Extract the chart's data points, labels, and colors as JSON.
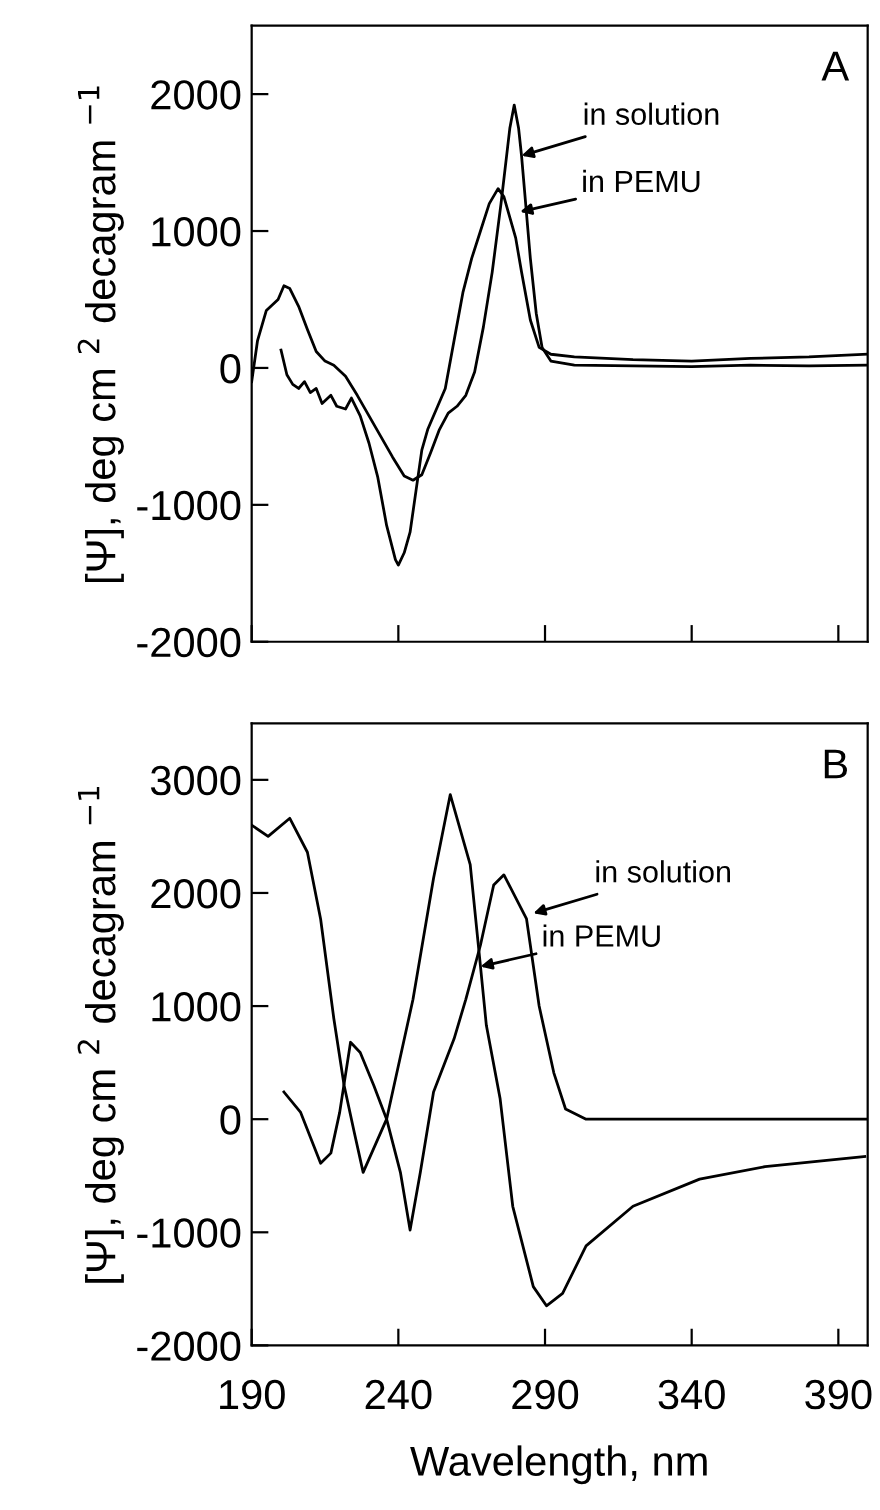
{
  "chart_data": [
    {
      "type": "line",
      "title": "A",
      "ylabel": "[Ψ], deg cm $^{2}$ decagram $^{−1}$",
      "xlim": [
        190,
        400
      ],
      "ylim": [
        -2000,
        2500
      ],
      "xticks": [
        190,
        240,
        290,
        340,
        390
      ],
      "yticks": [
        -2000,
        -1000,
        0,
        1000,
        2000
      ],
      "tick_labels": "y",
      "grid": false,
      "legend": false,
      "marker": "none",
      "line_style": "solid",
      "series": [
        {
          "color": "#000000",
          "x": [
            190,
            192,
            195,
            199,
            201,
            203,
            206,
            209,
            212,
            215,
            218,
            222,
            226,
            230,
            234,
            238,
            242,
            245,
            248,
            251,
            254,
            257,
            260,
            263,
            266,
            269,
            272,
            275,
            278,
            279.5,
            281,
            282,
            283,
            285,
            287,
            289,
            292,
            300,
            320,
            340,
            360,
            380,
            400
          ],
          "values": [
            -100,
            200,
            420,
            500,
            600,
            580,
            450,
            280,
            120,
            50,
            20,
            -60,
            -200,
            -350,
            -500,
            -650,
            -790,
            -820,
            -780,
            -620,
            -450,
            -330,
            -280,
            -200,
            -30,
            300,
            700,
            1200,
            1750,
            1920,
            1750,
            1550,
            1300,
            800,
            400,
            150,
            50,
            20,
            15,
            10,
            20,
            15,
            20
          ]
        },
        {
          "color": "#000000",
          "x": [
            200,
            202,
            204,
            206,
            208,
            210,
            212,
            214,
            217,
            219,
            222,
            224,
            227,
            230,
            233,
            236,
            239,
            240,
            242,
            244,
            246,
            248,
            250,
            253,
            256,
            259,
            262,
            265,
            268,
            271,
            274,
            276,
            278,
            280,
            282,
            285,
            288,
            292,
            300,
            320,
            340,
            360,
            380,
            400
          ],
          "values": [
            130,
            -50,
            -120,
            -150,
            -100,
            -180,
            -150,
            -260,
            -200,
            -280,
            -300,
            -220,
            -350,
            -550,
            -800,
            -1150,
            -1400,
            -1440,
            -1350,
            -1200,
            -900,
            -600,
            -450,
            -300,
            -150,
            200,
            550,
            800,
            1000,
            1200,
            1310,
            1250,
            1100,
            950,
            700,
            350,
            150,
            100,
            80,
            60,
            50,
            70,
            80,
            100
          ]
        }
      ],
      "annotations": [
        {
          "text": "in solution",
          "x": 282,
          "y": 1550
        },
        {
          "text": "in PEMU",
          "x": 281.5,
          "y": 1140
        }
      ]
    },
    {
      "type": "line",
      "title": "B",
      "xlabel": "Wavelength, nm",
      "ylabel": "[Ψ], deg cm $^{2}$ decagram $^{−1}$",
      "xlim": [
        190,
        400
      ],
      "ylim": [
        -2000,
        3500
      ],
      "xticks": [
        190,
        240,
        290,
        340,
        390
      ],
      "yticks": [
        -2000,
        -1000,
        0,
        1000,
        2000,
        3000
      ],
      "grid": false,
      "legend": false,
      "marker": "none",
      "line_style": "solid",
      "series": [
        {
          "color": "#000000",
          "x": [
            201,
            206.7,
            213.5,
            217,
            220,
            223.7,
            227,
            231.6,
            236,
            240.7,
            244,
            247.5,
            252,
            259,
            263,
            268,
            272.5,
            276,
            283.7,
            288,
            293,
            297,
            304,
            320,
            350,
            400
          ],
          "values": [
            240,
            60,
            -390,
            -300,
            60,
            680,
            590,
            300,
            0,
            -470,
            -980,
            -470,
            240,
            710,
            1060,
            1540,
            2070,
            2160,
            1770,
            1000,
            410,
            90,
            0,
            0,
            0,
            0
          ]
        },
        {
          "color": "#000000",
          "x": [
            190,
            195.6,
            203,
            209,
            213.5,
            218,
            221.5,
            225,
            228,
            236,
            245,
            252,
            257.7,
            264.5,
            268,
            270,
            274.7,
            279,
            286,
            290.5,
            296,
            304,
            320,
            342.7,
            365,
            399
          ],
          "values": [
            2600,
            2500,
            2660,
            2360,
            1770,
            890,
            300,
            -120,
            -470,
            0,
            1060,
            2130,
            2870,
            2250,
            1350,
            830,
            180,
            -770,
            -1480,
            -1650,
            -1540,
            -1120,
            -770,
            -530,
            -420,
            -330
          ]
        }
      ],
      "annotations": [
        {
          "text": "in solution",
          "x": 286,
          "y": 1820
        },
        {
          "text": "in PEMU",
          "x": 268,
          "y": 1350
        }
      ]
    }
  ]
}
